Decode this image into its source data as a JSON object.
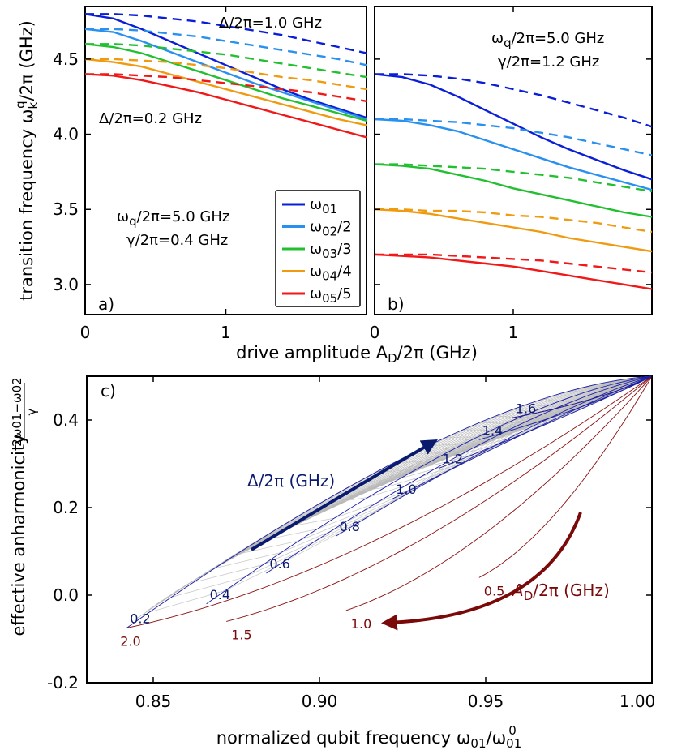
{
  "chart_data": [
    {
      "id": "a",
      "type": "line",
      "panel_label": "a)",
      "ylabel": "transition frequency ω_k^q/2π (GHz)",
      "ylabel_parts": {
        "main": "transition frequency ω",
        "sub": "k",
        "sup": "q",
        "tail": "/2π (GHz)"
      },
      "xlabel_shared": "drive amplitude A_D/2π (GHz)",
      "xlabel_parts": {
        "main": "drive amplitude A",
        "sub": "D",
        "tail": "/2π (GHz)"
      },
      "xlim": [
        0,
        2.0
      ],
      "ylim": [
        2.8,
        4.85
      ],
      "xticks": [
        "0",
        "1"
      ],
      "yticks": [
        "3.0",
        "3.5",
        "4.0",
        "4.5"
      ],
      "x": [
        0,
        0.2,
        0.4,
        0.6,
        0.8,
        1.0,
        1.2,
        1.4,
        1.6,
        1.8,
        2.0
      ],
      "series": [
        {
          "name": "ω01 (Δ/2π=1.0 GHz)",
          "style": "solid",
          "color": "#0a1ed8",
          "values": [
            4.8,
            4.77,
            4.7,
            4.62,
            4.54,
            4.46,
            4.38,
            4.3,
            4.23,
            4.17,
            4.11
          ]
        },
        {
          "name": "ω02/2",
          "style": "solid",
          "color": "#2a90f0",
          "values": [
            4.7,
            4.68,
            4.62,
            4.55,
            4.48,
            4.41,
            4.34,
            4.28,
            4.22,
            4.16,
            4.1
          ]
        },
        {
          "name": "ω03/3",
          "style": "solid",
          "color": "#22c030",
          "values": [
            4.6,
            4.58,
            4.54,
            4.48,
            4.42,
            4.36,
            4.3,
            4.24,
            4.19,
            4.14,
            4.09
          ]
        },
        {
          "name": "ω04/4",
          "style": "solid",
          "color": "#f09a10",
          "values": [
            4.5,
            4.48,
            4.45,
            4.4,
            4.35,
            4.3,
            4.25,
            4.2,
            4.15,
            4.1,
            4.06
          ]
        },
        {
          "name": "ω05/5",
          "style": "solid",
          "color": "#f01818",
          "values": [
            4.4,
            4.39,
            4.36,
            4.32,
            4.28,
            4.23,
            4.18,
            4.13,
            4.08,
            4.03,
            3.98
          ]
        },
        {
          "name": "ω01 (Δ/2π=0.2 GHz)",
          "style": "dashed",
          "color": "#0a1ed8",
          "values": [
            4.8,
            4.8,
            4.79,
            4.77,
            4.75,
            4.72,
            4.69,
            4.66,
            4.62,
            4.58,
            4.54
          ]
        },
        {
          "name": "ω02/2 (0.2)",
          "style": "dashed",
          "color": "#2a90f0",
          "values": [
            4.7,
            4.7,
            4.69,
            4.67,
            4.65,
            4.62,
            4.59,
            4.56,
            4.53,
            4.5,
            4.46
          ]
        },
        {
          "name": "ω03/3 (0.2)",
          "style": "dashed",
          "color": "#22c030",
          "values": [
            4.6,
            4.6,
            4.59,
            4.57,
            4.55,
            4.53,
            4.5,
            4.47,
            4.44,
            4.41,
            4.38
          ]
        },
        {
          "name": "ω04/4 (0.2)",
          "style": "dashed",
          "color": "#f09a10",
          "values": [
            4.5,
            4.5,
            4.49,
            4.48,
            4.46,
            4.44,
            4.41,
            4.38,
            4.36,
            4.33,
            4.3
          ]
        },
        {
          "name": "ω05/5 (0.2)",
          "style": "dashed",
          "color": "#f01818",
          "values": [
            4.4,
            4.4,
            4.39,
            4.38,
            4.36,
            4.34,
            4.32,
            4.3,
            4.28,
            4.25,
            4.22
          ]
        }
      ],
      "annotations": [
        {
          "key": "d1",
          "text": "Δ/2π=1.0 GHz"
        },
        {
          "key": "d2",
          "text": "Δ/2π=0.2 GHz"
        },
        {
          "key": "wq",
          "text": "ωq/2π=5.0 GHz",
          "parts": {
            "main": "ω",
            "sub": "q",
            "tail": "/2π=5.0 GHz"
          }
        },
        {
          "key": "g",
          "text": "γ/2π=0.4 GHz"
        }
      ],
      "legend": {
        "placement": "lower-right",
        "entries": [
          {
            "main": "ω",
            "sub": "01",
            "tail": "",
            "color": "#0a1ed8"
          },
          {
            "main": "ω",
            "sub": "02",
            "tail": "/2",
            "color": "#2a90f0"
          },
          {
            "main": "ω",
            "sub": "03",
            "tail": "/3",
            "color": "#22c030"
          },
          {
            "main": "ω",
            "sub": "04",
            "tail": "/4",
            "color": "#f09a10"
          },
          {
            "main": "ω",
            "sub": "05",
            "tail": "/5",
            "color": "#f01818"
          }
        ]
      }
    },
    {
      "id": "b",
      "type": "line",
      "panel_label": "b)",
      "xlim": [
        0,
        2.0
      ],
      "ylim": [
        2.8,
        4.85
      ],
      "xticks": [
        "0",
        "1"
      ],
      "x": [
        0,
        0.2,
        0.4,
        0.6,
        0.8,
        1.0,
        1.2,
        1.4,
        1.6,
        1.8,
        2.0
      ],
      "series": [
        {
          "name": "ω01",
          "style": "solid",
          "color": "#0a1ed8",
          "values": [
            4.4,
            4.38,
            4.33,
            4.25,
            4.16,
            4.07,
            3.98,
            3.9,
            3.83,
            3.76,
            3.7
          ]
        },
        {
          "name": "ω02/2",
          "style": "solid",
          "color": "#2a90f0",
          "values": [
            4.1,
            4.09,
            4.06,
            4.02,
            3.96,
            3.9,
            3.84,
            3.78,
            3.73,
            3.68,
            3.63
          ]
        },
        {
          "name": "ω03/3",
          "style": "solid",
          "color": "#22c030",
          "values": [
            3.8,
            3.79,
            3.77,
            3.73,
            3.69,
            3.64,
            3.6,
            3.56,
            3.52,
            3.48,
            3.45
          ]
        },
        {
          "name": "ω04/4",
          "style": "solid",
          "color": "#f09a10",
          "values": [
            3.5,
            3.49,
            3.47,
            3.44,
            3.41,
            3.38,
            3.35,
            3.31,
            3.28,
            3.25,
            3.22
          ]
        },
        {
          "name": "ω05/5",
          "style": "solid",
          "color": "#f01818",
          "values": [
            3.2,
            3.19,
            3.18,
            3.16,
            3.14,
            3.12,
            3.09,
            3.06,
            3.03,
            3.0,
            2.97
          ]
        },
        {
          "name": "ω01 dashed",
          "style": "dashed",
          "color": "#0a1ed8",
          "values": [
            4.4,
            4.4,
            4.39,
            4.37,
            4.34,
            4.3,
            4.26,
            4.21,
            4.16,
            4.11,
            4.05
          ]
        },
        {
          "name": "ω02/2 dashed",
          "style": "dashed",
          "color": "#2a90f0",
          "values": [
            4.1,
            4.1,
            4.09,
            4.08,
            4.06,
            4.04,
            4.01,
            3.98,
            3.94,
            3.9,
            3.86
          ]
        },
        {
          "name": "ω03/3 dashed",
          "style": "dashed",
          "color": "#22c030",
          "values": [
            3.8,
            3.8,
            3.79,
            3.78,
            3.77,
            3.75,
            3.73,
            3.71,
            3.68,
            3.65,
            3.62
          ]
        },
        {
          "name": "ω04/4 dashed",
          "style": "dashed",
          "color": "#f09a10",
          "values": [
            3.5,
            3.5,
            3.49,
            3.49,
            3.48,
            3.46,
            3.45,
            3.43,
            3.41,
            3.38,
            3.35
          ]
        },
        {
          "name": "ω05/5 dashed",
          "style": "dashed",
          "color": "#f01818",
          "values": [
            3.2,
            3.2,
            3.2,
            3.19,
            3.18,
            3.17,
            3.16,
            3.14,
            3.12,
            3.1,
            3.08
          ]
        }
      ],
      "annotations": [
        {
          "key": "wq",
          "text": "ωq/2π=5.0 GHz",
          "parts": {
            "main": "ω",
            "sub": "q",
            "tail": "/2π=5.0 GHz"
          }
        },
        {
          "key": "g",
          "text": "γ/2π=1.2 GHz"
        }
      ]
    },
    {
      "id": "c",
      "type": "line",
      "panel_label": "c)",
      "xlabel": "normalized qubit frequency ω01/ω01^0",
      "xlabel_parts": {
        "main": "normalized qubit frequency ω",
        "sub": "01",
        "mid": "/ω",
        "sub2": "01",
        "sup2": "0"
      },
      "ylabel": "effective anharmonicity (2ω01−ω02)/γ",
      "ylabel_parts": {
        "main": "effective anharmonicity",
        "num": "2ω01−ω02",
        "den": "γ"
      },
      "xlim": [
        0.83,
        1.0
      ],
      "ylim": [
        -0.2,
        0.5
      ],
      "xticks": [
        "0.85",
        "0.90",
        "0.95",
        "1.00"
      ],
      "xtick_values": [
        0.85,
        0.9,
        0.95,
        1.0
      ],
      "yticks": [
        "-0.2",
        "0.0",
        "0.2",
        "0.4"
      ],
      "ytick_values": [
        -0.2,
        0.0,
        0.2,
        0.4
      ],
      "start_point": [
        1.0,
        0.5
      ],
      "delta_curves": [
        {
          "label": "0.2",
          "end": [
            0.842,
            -0.075
          ],
          "bend": 0.95
        },
        {
          "label": "0.4",
          "end": [
            0.866,
            -0.02
          ],
          "bend": 0.9
        },
        {
          "label": "0.6",
          "end": [
            0.884,
            0.05
          ],
          "bend": 0.85
        },
        {
          "label": "0.8",
          "end": [
            0.905,
            0.135
          ],
          "bend": 0.78
        },
        {
          "label": "1.0",
          "end": [
            0.922,
            0.22
          ],
          "bend": 0.7
        },
        {
          "label": "1.2",
          "end": [
            0.936,
            0.29
          ],
          "bend": 0.6
        },
        {
          "label": "1.4",
          "end": [
            0.948,
            0.355
          ],
          "bend": 0.5
        },
        {
          "label": "1.6",
          "end": [
            0.958,
            0.405
          ],
          "bend": 0.42
        }
      ],
      "amplitude_curves": [
        {
          "label": "2.0",
          "end": [
            0.842,
            -0.075
          ]
        },
        {
          "label": "1.5",
          "end": [
            0.872,
            -0.06
          ]
        },
        {
          "label": "1.0",
          "end": [
            0.908,
            -0.035
          ]
        },
        {
          "label": "0.5",
          "end": [
            0.948,
            0.04
          ]
        }
      ],
      "annotations": [
        {
          "key": "delta",
          "text": "Δ/2π (GHz)",
          "color": "#0a1a6e"
        },
        {
          "key": "amp",
          "text": "A_D/2π (GHz)",
          "parts": {
            "main": "A",
            "sub": "D",
            "tail": "/2π (GHz)"
          },
          "color": "#7a0a0a"
        }
      ]
    }
  ]
}
